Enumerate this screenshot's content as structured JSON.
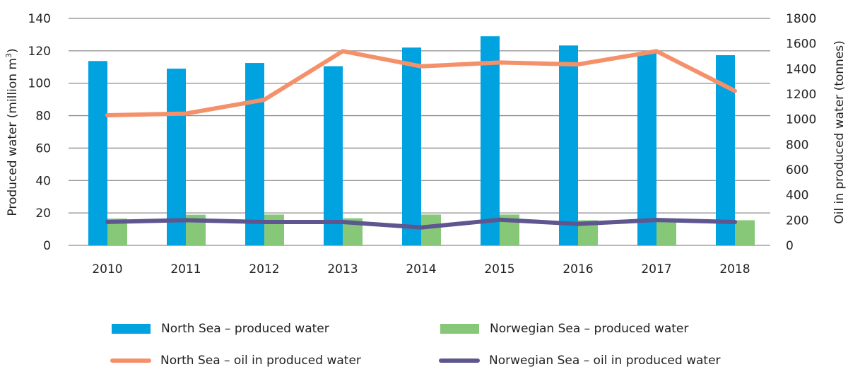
{
  "chart_data": {
    "type": "bar",
    "title": "",
    "categories": [
      "2010",
      "2011",
      "2012",
      "2013",
      "2014",
      "2015",
      "2016",
      "2017",
      "2018"
    ],
    "xlabel": "",
    "ylabel": "Produced water (million m³)",
    "ylabel_main": "Produced water (million m",
    "ylabel_sup": "3",
    "ylabel_end": ")",
    "ylim": [
      0,
      140
    ],
    "yticks": [
      0,
      20,
      40,
      60,
      80,
      100,
      120,
      140
    ],
    "y2label": "Oil in produced water (tonnes)",
    "y2lim": [
      0,
      1800
    ],
    "y2ticks": [
      0,
      200,
      400,
      600,
      800,
      1000,
      1200,
      1400,
      1600,
      1800
    ],
    "grid": true,
    "legend_position": "bottom",
    "series": [
      {
        "name": "North Sea – produced water",
        "kind": "bar",
        "axis": "left",
        "color": "#00a3e0",
        "values": [
          113.7,
          109,
          112.5,
          110.5,
          122,
          129,
          123.3,
          119,
          117.3
        ]
      },
      {
        "name": "Norwegian Sea – produced water",
        "kind": "bar",
        "axis": "left",
        "color": "#86c878",
        "values": [
          16.5,
          18.9,
          19,
          16.7,
          19,
          19,
          15.5,
          15.8,
          15.5
        ]
      },
      {
        "name": "North Sea – oil in produced water",
        "kind": "line",
        "axis": "right",
        "color": "#f4916a",
        "values": [
          1032,
          1045,
          1155,
          1540,
          1420,
          1450,
          1435,
          1540,
          1225
        ]
      },
      {
        "name": "Norwegian Sea – oil in produced water",
        "kind": "line",
        "axis": "right",
        "color": "#5e578f",
        "values": [
          186,
          200,
          185,
          185,
          142,
          203,
          170,
          201,
          185
        ]
      }
    ]
  },
  "legend": [
    {
      "label": "North Sea – produced water",
      "kind": "bar",
      "color": "#00a3e0"
    },
    {
      "label": "Norwegian Sea – produced water",
      "kind": "bar",
      "color": "#86c878"
    },
    {
      "label": "North Sea – oil in produced water",
      "kind": "line",
      "color": "#f4916a"
    },
    {
      "label": "Norwegian Sea – oil in produced water",
      "kind": "line",
      "color": "#5e578f"
    }
  ],
  "colors": {
    "grid": "#8c8c8c",
    "text": "#222222"
  }
}
